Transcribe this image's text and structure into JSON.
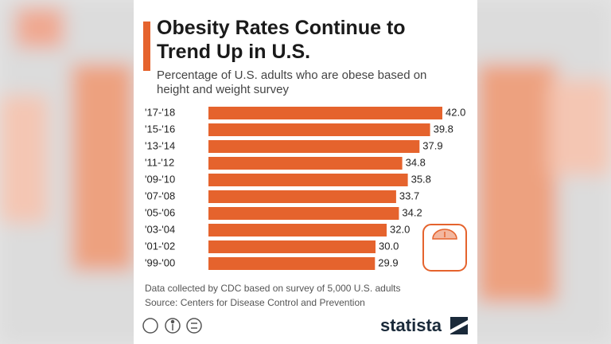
{
  "chart_data": {
    "type": "bar",
    "orientation": "horizontal",
    "title": "Obesity Rates Continue to Trend Up in U.S.",
    "subtitle": "Percentage of U.S. adults who are obese based on height and weight survey",
    "categories": [
      "'17-'18",
      "'15-'16",
      "'13-'14",
      "'11-'12",
      "'09-'10",
      "'07-'08",
      "'05-'06",
      "'03-'04",
      "'01-'02",
      "'99-'00"
    ],
    "values": [
      42.0,
      39.8,
      37.9,
      34.8,
      35.8,
      33.7,
      34.2,
      32.0,
      30.0,
      29.9
    ],
    "value_labels": [
      "42.0",
      "39.8",
      "37.9",
      "34.8",
      "35.8",
      "33.7",
      "34.2",
      "32.0",
      "30.0",
      "29.9"
    ],
    "color": "#e5632d",
    "note": "Data collected by CDC based on survey of 5,000 U.S. adults",
    "source": "Source: Centers for Disease Control and Prevention",
    "brand": "statista"
  }
}
